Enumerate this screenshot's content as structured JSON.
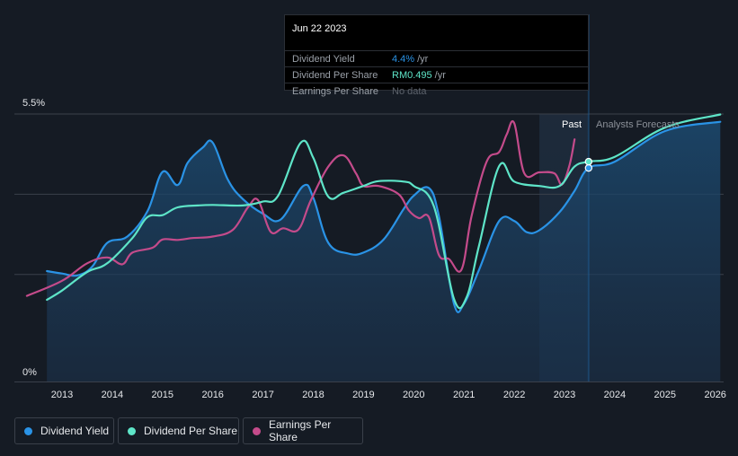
{
  "chart_data": {
    "type": "line",
    "title": "",
    "y_axis": {
      "min": 0,
      "max": 5.5,
      "labels": [
        "5.5%",
        "0%"
      ]
    },
    "x_axis": {
      "min": 2012.3,
      "max": 2026.1,
      "ticks": [
        "2013",
        "2014",
        "2015",
        "2016",
        "2017",
        "2018",
        "2019",
        "2020",
        "2021",
        "2022",
        "2023",
        "2024",
        "2025",
        "2026"
      ]
    },
    "regions": {
      "past_label": "Past",
      "forecast_label": "Analysts Forecasts",
      "shade_start": 2022.5,
      "today": 2023.48
    },
    "series": [
      {
        "name": "Dividend Yield",
        "color": "#2a93e6",
        "fill": true,
        "points": [
          [
            2012.7,
            2.27
          ],
          [
            2013.0,
            2.22
          ],
          [
            2013.3,
            2.18
          ],
          [
            2013.6,
            2.36
          ],
          [
            2013.9,
            2.85
          ],
          [
            2014.3,
            2.98
          ],
          [
            2014.7,
            3.5
          ],
          [
            2015.0,
            4.31
          ],
          [
            2015.3,
            4.04
          ],
          [
            2015.5,
            4.5
          ],
          [
            2015.8,
            4.81
          ],
          [
            2016.0,
            4.91
          ],
          [
            2016.3,
            4.15
          ],
          [
            2016.6,
            3.75
          ],
          [
            2017.0,
            3.45
          ],
          [
            2017.35,
            3.33
          ],
          [
            2017.8,
            4.02
          ],
          [
            2018.0,
            3.78
          ],
          [
            2018.3,
            2.85
          ],
          [
            2018.7,
            2.63
          ],
          [
            2019.0,
            2.65
          ],
          [
            2019.4,
            2.92
          ],
          [
            2019.8,
            3.55
          ],
          [
            2020.0,
            3.82
          ],
          [
            2020.3,
            3.98
          ],
          [
            2020.5,
            3.4
          ],
          [
            2020.8,
            1.6
          ],
          [
            2021.0,
            1.6
          ],
          [
            2021.3,
            2.3
          ],
          [
            2021.7,
            3.3
          ],
          [
            2022.0,
            3.3
          ],
          [
            2022.25,
            3.07
          ],
          [
            2022.5,
            3.11
          ],
          [
            2022.9,
            3.48
          ],
          [
            2023.2,
            3.92
          ],
          [
            2023.48,
            4.39
          ],
          [
            2024.0,
            4.52
          ],
          [
            2025.0,
            5.15
          ],
          [
            2026.1,
            5.34
          ]
        ]
      },
      {
        "name": "Dividend Per Share",
        "color": "#5ee5c8",
        "points": [
          [
            2012.7,
            1.68
          ],
          [
            2013.0,
            1.87
          ],
          [
            2013.5,
            2.25
          ],
          [
            2013.9,
            2.43
          ],
          [
            2014.4,
            2.95
          ],
          [
            2014.7,
            3.38
          ],
          [
            2015.0,
            3.42
          ],
          [
            2015.3,
            3.58
          ],
          [
            2015.7,
            3.62
          ],
          [
            2016.0,
            3.63
          ],
          [
            2016.6,
            3.62
          ],
          [
            2017.0,
            3.7
          ],
          [
            2017.3,
            3.82
          ],
          [
            2017.75,
            4.91
          ],
          [
            2018.0,
            4.6
          ],
          [
            2018.3,
            3.8
          ],
          [
            2018.6,
            3.88
          ],
          [
            2019.0,
            4.02
          ],
          [
            2019.3,
            4.12
          ],
          [
            2019.8,
            4.11
          ],
          [
            2020.0,
            4.02
          ],
          [
            2020.4,
            3.6
          ],
          [
            2020.8,
            1.7
          ],
          [
            2021.05,
            1.73
          ],
          [
            2021.3,
            2.8
          ],
          [
            2021.7,
            4.43
          ],
          [
            2022.0,
            4.11
          ],
          [
            2022.5,
            4.02
          ],
          [
            2022.9,
            4.02
          ],
          [
            2023.2,
            4.42
          ],
          [
            2023.48,
            4.52
          ],
          [
            2024.0,
            4.62
          ],
          [
            2025.0,
            5.22
          ],
          [
            2026.1,
            5.49
          ]
        ]
      },
      {
        "name": "Earnings Per Share",
        "color": "#c44b8b",
        "points": [
          [
            2012.3,
            1.76
          ],
          [
            2013.0,
            2.07
          ],
          [
            2013.5,
            2.43
          ],
          [
            2013.9,
            2.55
          ],
          [
            2014.2,
            2.41
          ],
          [
            2014.4,
            2.65
          ],
          [
            2014.8,
            2.75
          ],
          [
            2015.0,
            2.92
          ],
          [
            2015.3,
            2.91
          ],
          [
            2015.6,
            2.95
          ],
          [
            2016.0,
            2.98
          ],
          [
            2016.4,
            3.12
          ],
          [
            2016.7,
            3.58
          ],
          [
            2016.9,
            3.73
          ],
          [
            2017.15,
            3.08
          ],
          [
            2017.4,
            3.15
          ],
          [
            2017.7,
            3.12
          ],
          [
            2017.95,
            3.72
          ],
          [
            2018.3,
            4.42
          ],
          [
            2018.6,
            4.65
          ],
          [
            2018.85,
            4.28
          ],
          [
            2019.0,
            4.02
          ],
          [
            2019.3,
            4.02
          ],
          [
            2019.7,
            3.85
          ],
          [
            2019.9,
            3.52
          ],
          [
            2020.1,
            3.36
          ],
          [
            2020.3,
            3.38
          ],
          [
            2020.5,
            2.6
          ],
          [
            2020.7,
            2.52
          ],
          [
            2020.95,
            2.3
          ],
          [
            2021.15,
            3.4
          ],
          [
            2021.45,
            4.52
          ],
          [
            2021.7,
            4.72
          ],
          [
            2021.85,
            5.08
          ],
          [
            2022.0,
            5.31
          ],
          [
            2022.2,
            4.28
          ],
          [
            2022.5,
            4.3
          ],
          [
            2022.8,
            4.28
          ],
          [
            2022.95,
            4.05
          ],
          [
            2023.1,
            4.45
          ],
          [
            2023.2,
            4.98
          ]
        ]
      }
    ]
  },
  "tooltip": {
    "date": "Jun 22 2023",
    "rows": [
      {
        "label": "Dividend Yield",
        "value": "4.4%",
        "unit": "/yr",
        "color": "#2a93e6"
      },
      {
        "label": "Dividend Per Share",
        "value": "RM0.495",
        "unit": "/yr",
        "color": "#5ee5c8"
      },
      {
        "label": "Earnings Per Share",
        "value": "No data",
        "unit": "",
        "color": "#5c626b"
      }
    ]
  },
  "legend": [
    {
      "label": "Dividend Yield",
      "color": "#2a93e6"
    },
    {
      "label": "Dividend Per Share",
      "color": "#5ee5c8"
    },
    {
      "label": "Earnings Per Share",
      "color": "#c44b8b"
    }
  ]
}
